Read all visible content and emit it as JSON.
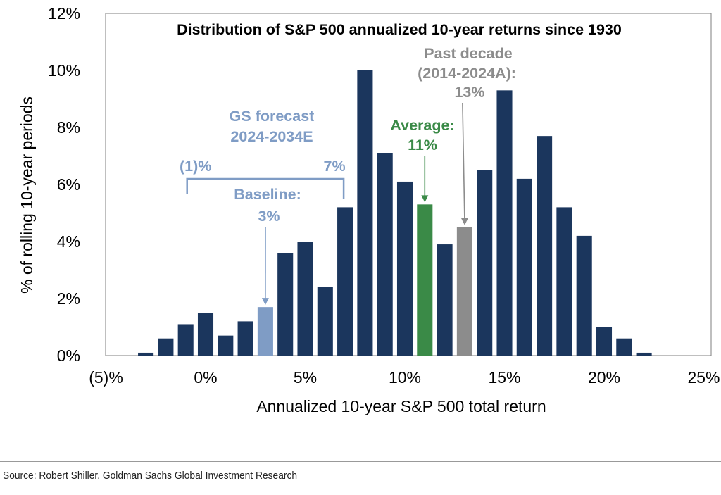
{
  "chart_data": {
    "type": "bar",
    "title": "Distribution of S&P 500 annualized 10-year returns since 1930",
    "xlabel": "Annualized 10-year S&P 500 total return",
    "ylabel": "% of rolling 10-year periods",
    "x_ticks": [
      "(5)%",
      "0%",
      "5%",
      "10%",
      "15%",
      "20%",
      "25%"
    ],
    "x_tick_values": [
      -5,
      0,
      5,
      10,
      15,
      20,
      25
    ],
    "y_ticks": [
      "0%",
      "2%",
      "4%",
      "6%",
      "8%",
      "10%",
      "12%"
    ],
    "y_tick_values": [
      0,
      2,
      4,
      6,
      8,
      10,
      12
    ],
    "xlim": [
      -5,
      25
    ],
    "ylim": [
      0,
      12
    ],
    "grid": false,
    "bin_width": 1,
    "bins": [
      -3,
      -2,
      -1,
      0,
      1,
      2,
      3,
      4,
      5,
      6,
      7,
      8,
      9,
      10,
      11,
      12,
      13,
      14,
      15,
      16,
      17,
      18,
      19,
      20,
      21,
      22
    ],
    "values": [
      0.1,
      0.6,
      1.1,
      1.5,
      0.7,
      1.2,
      1.7,
      3.6,
      4.0,
      2.4,
      5.2,
      10.0,
      7.1,
      6.1,
      5.3,
      3.9,
      4.5,
      6.5,
      9.3,
      6.2,
      7.7,
      5.2,
      4.2,
      1.0,
      0.6,
      0.1
    ],
    "highlights": [
      {
        "bin": 3,
        "color": "#7f9cc5",
        "label": "Baseline"
      },
      {
        "bin": 11,
        "color": "#3a8a47",
        "label": "Average"
      },
      {
        "bin": 13,
        "color": "#8c8c8c",
        "label": "Past decade"
      }
    ],
    "colors": {
      "bar": "#1b365d",
      "baseline": "#7f9cc5",
      "average": "#3a8a47",
      "past_decade": "#8c8c8c",
      "forecast_text": "#7f9cc5",
      "axis": "#7f7f7f"
    },
    "annotations": {
      "forecast_title_line1": "GS forecast",
      "forecast_title_line2": "2024-2034E",
      "range_low": "(1)%",
      "range_high": "7%",
      "range_low_value": -1,
      "range_high_value": 7,
      "baseline_label": "Baseline:",
      "baseline_value": "3%",
      "average_label": "Average:",
      "average_value": "11%",
      "past_label_line1": "Past decade",
      "past_label_line2": "(2014-2024A):",
      "past_value": "13%"
    }
  },
  "source": "Source: Robert Shiller, Goldman Sachs Global Investment Research"
}
